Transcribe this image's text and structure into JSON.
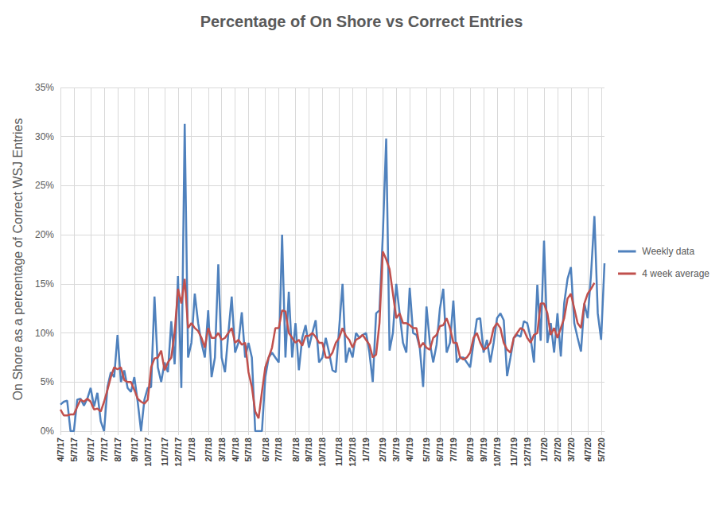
{
  "chart_data": {
    "type": "line",
    "title": "Percentage of On Shore vs Correct Entries",
    "y_label": "On Shore as a percentage of Correct WSJ Entries",
    "categories": [
      "4/7/17",
      null,
      null,
      null,
      "5/7/17",
      null,
      null,
      null,
      null,
      "6/7/17",
      null,
      null,
      null,
      "7/7/17",
      null,
      null,
      null,
      "8/7/17",
      null,
      null,
      null,
      null,
      "9/7/17",
      null,
      null,
      null,
      "10/7/17",
      null,
      null,
      null,
      null,
      "11/7/17",
      null,
      null,
      null,
      "12/7/17",
      null,
      null,
      null,
      "1/7/18",
      null,
      null,
      null,
      null,
      "2/7/18",
      null,
      null,
      null,
      "3/7/18",
      null,
      null,
      null,
      "4/7/18",
      null,
      null,
      null,
      "5/7/18",
      null,
      null,
      null,
      null,
      "6/7/18",
      null,
      null,
      null,
      "7/7/18",
      null,
      null,
      null,
      null,
      "8/7/18",
      null,
      null,
      null,
      "9/7/18",
      null,
      null,
      null,
      "10/7/18",
      null,
      null,
      null,
      null,
      "11/7/18",
      null,
      null,
      null,
      "12/7/18",
      null,
      null,
      null,
      "1/7/19",
      null,
      null,
      null,
      null,
      "2/7/19",
      null,
      null,
      null,
      "3/7/19",
      null,
      null,
      null,
      "4/7/19",
      null,
      null,
      null,
      null,
      "5/7/19",
      null,
      null,
      null,
      "6/7/19",
      null,
      null,
      null,
      "7/7/19",
      null,
      null,
      null,
      null,
      "8/7/19",
      null,
      null,
      null,
      "9/7/19",
      null,
      null,
      null,
      "10/7/19",
      null,
      null,
      null,
      null,
      "11/7/19",
      null,
      null,
      null,
      "12/7/19",
      null,
      null,
      null,
      null,
      "1/7/20",
      null,
      null,
      null,
      "2/7/20",
      null,
      null,
      null,
      "3/7/20",
      null,
      null,
      null,
      null,
      "4/7/20",
      null,
      null,
      null,
      "5/7/20",
      null
    ],
    "series": [
      {
        "name": "Weekly data",
        "color": "#4f81bd",
        "values": [
          2.7,
          3.0,
          3.1,
          0,
          0,
          3.2,
          3.3,
          2.6,
          3.3,
          4.4,
          2.5,
          3.9,
          1.0,
          0,
          4.5,
          6.0,
          5.5,
          9.8,
          5.0,
          6.2,
          4.4,
          4.0,
          5.5,
          3.0,
          0,
          3.2,
          4.4,
          4.5,
          13.7,
          6.5,
          5.0,
          7.0,
          6.0,
          11.2,
          6.8,
          15.8,
          4.4,
          31.3,
          7.5,
          9.0,
          14.0,
          11.0,
          9.0,
          7.5,
          12.3,
          5.5,
          7.5,
          17.0,
          7.5,
          6.0,
          10.0,
          13.7,
          8.0,
          9.0,
          12.1,
          7.5,
          9.0,
          7.5,
          0,
          0,
          0,
          5.5,
          7.5,
          8.0,
          7.5,
          7.0,
          20.0,
          7.5,
          14.2,
          7.5,
          11.0,
          6.2,
          9.5,
          10.8,
          8.5,
          10.0,
          11.3,
          7.0,
          7.5,
          9.5,
          8.0,
          6.2,
          6.0,
          10.5,
          15.0,
          7.0,
          8.5,
          7.5,
          10.0,
          9.5,
          9.8,
          10.0,
          8.0,
          5.0,
          12.0,
          12.3,
          20.0,
          29.8,
          8.2,
          10.0,
          15.0,
          12.0,
          9.0,
          8.0,
          14.6,
          10.0,
          9.8,
          8.5,
          4.5,
          12.7,
          9.0,
          7.0,
          8.8,
          12.5,
          14.5,
          8.0,
          9.0,
          13.3,
          7.0,
          7.5,
          7.5,
          7.0,
          6.5,
          9.0,
          11.4,
          11.5,
          8.0,
          9.3,
          7.0,
          9.0,
          11.5,
          12.0,
          11.3,
          5.6,
          7.5,
          9.5,
          9.8,
          9.6,
          11.2,
          11.0,
          9.5,
          7.0,
          14.9,
          9.2,
          19.4,
          9.0,
          11.0,
          8.0,
          12.0,
          7.6,
          13.0,
          15.5,
          16.7,
          11.0,
          9.5,
          8.1,
          13.0,
          11.5,
          16.0,
          21.9,
          12.0,
          9.3,
          17.1
        ]
      },
      {
        "name": "4 week average",
        "color": "#c0504d",
        "values": [
          2.2,
          1.6,
          1.6,
          1.7,
          1.7,
          2.5,
          3.2,
          3.0,
          3.3,
          3.0,
          2.2,
          2.3,
          2.0,
          3.0,
          4.2,
          5.5,
          6.5,
          6.3,
          6.5,
          5.2,
          5.0,
          5.0,
          4.2,
          3.3,
          3.0,
          2.8,
          3.2,
          6.5,
          7.4,
          7.5,
          8.2,
          6.2,
          7.0,
          7.5,
          10.0,
          14.5,
          13.0,
          15.5,
          10.5,
          11.0,
          10.5,
          10.2,
          9.5,
          8.5,
          10.5,
          9.5,
          9.5,
          10.0,
          9.3,
          9.5,
          10.0,
          10.5,
          9.0,
          9.3,
          8.8,
          9.0,
          6.0,
          4.5,
          2.0,
          1.3,
          4.0,
          6.5,
          7.5,
          8.5,
          10.5,
          10.5,
          12.3,
          12.2,
          10.0,
          9.5,
          9.0,
          9.3,
          8.7,
          9.7,
          9.7,
          10.0,
          9.6,
          9.0,
          9.0,
          7.5,
          7.5,
          8.0,
          9.0,
          9.5,
          10.5,
          9.7,
          9.3,
          8.5,
          9.3,
          9.5,
          9.8,
          9.3,
          8.8,
          7.5,
          7.8,
          11.0,
          18.3,
          17.5,
          16.5,
          14.0,
          11.5,
          12.0,
          11.0,
          11.0,
          10.8,
          10.5,
          10.5,
          8.5,
          9.0,
          8.5,
          8.3,
          9.5,
          9.8,
          10.7,
          10.8,
          11.5,
          10.5,
          9.0,
          9.0,
          7.5,
          7.3,
          7.5,
          8.0,
          9.5,
          10.0,
          9.0,
          8.3,
          8.5,
          9.0,
          10.5,
          11.0,
          10.5,
          9.0,
          8.3,
          8.0,
          9.5,
          10.0,
          10.5,
          10.3,
          9.5,
          9.0,
          9.8,
          10.0,
          13.0,
          13.0,
          12.0,
          9.8,
          10.5,
          9.5,
          10.5,
          11.5,
          13.5,
          14.0,
          12.5,
          11.0,
          10.5,
          13.0,
          14.0,
          14.5,
          15.1,
          null,
          null,
          null
        ]
      }
    ],
    "ylim": [
      0,
      35
    ],
    "yticks": [
      {
        "value": 0,
        "label": "0%"
      },
      {
        "value": 5,
        "label": "5%"
      },
      {
        "value": 10,
        "label": "10%"
      },
      {
        "value": 15,
        "label": "15%"
      },
      {
        "value": 20,
        "label": "20%"
      },
      {
        "value": 25,
        "label": "25%"
      },
      {
        "value": 30,
        "label": "30%"
      },
      {
        "value": 35,
        "label": "35%"
      }
    ],
    "grid": true,
    "legend": "right"
  }
}
